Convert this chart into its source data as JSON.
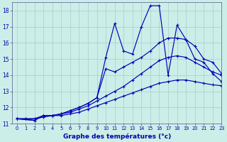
{
  "xlabel": "Graphe des températures (°c)",
  "background_color": "#cceee8",
  "grid_color": "#aacccc",
  "line_color": "#0000bb",
  "xlim": [
    -0.5,
    23
  ],
  "ylim": [
    11,
    18.5
  ],
  "xticks": [
    0,
    1,
    2,
    3,
    4,
    5,
    6,
    7,
    8,
    9,
    10,
    11,
    12,
    13,
    14,
    15,
    16,
    17,
    18,
    19,
    20,
    21,
    22,
    23
  ],
  "yticks": [
    11,
    12,
    13,
    14,
    15,
    16,
    17,
    18
  ],
  "lines": [
    {
      "x": [
        0,
        1,
        2,
        3,
        4,
        5,
        6,
        7,
        8,
        9,
        10,
        11,
        12,
        13,
        14,
        15,
        16,
        17,
        18,
        19,
        20,
        21,
        22,
        23
      ],
      "y": [
        11.3,
        11.3,
        11.3,
        11.4,
        11.5,
        11.5,
        11.6,
        11.7,
        11.9,
        12.1,
        12.3,
        12.5,
        12.7,
        12.9,
        13.1,
        13.3,
        13.5,
        13.6,
        13.7,
        13.7,
        13.6,
        13.5,
        13.4,
        13.35
      ]
    },
    {
      "x": [
        0,
        1,
        2,
        3,
        4,
        5,
        6,
        7,
        8,
        9,
        10,
        11,
        12,
        13,
        14,
        15,
        16,
        17,
        18,
        19,
        20,
        21,
        22,
        23
      ],
      "y": [
        11.3,
        11.3,
        11.3,
        11.5,
        11.5,
        11.6,
        11.7,
        11.9,
        12.1,
        12.4,
        12.7,
        13.0,
        13.3,
        13.7,
        14.1,
        14.5,
        14.9,
        15.1,
        15.2,
        15.1,
        14.8,
        14.5,
        14.2,
        14.0
      ]
    },
    {
      "x": [
        0,
        2,
        3,
        4,
        5,
        6,
        7,
        8,
        9,
        10,
        11,
        12,
        13,
        14,
        15,
        16,
        17,
        18,
        19,
        20,
        21,
        22,
        23
      ],
      "y": [
        11.3,
        11.2,
        11.5,
        11.5,
        11.6,
        11.8,
        12.0,
        12.25,
        12.6,
        14.4,
        14.2,
        14.5,
        14.8,
        15.1,
        15.5,
        16.0,
        16.3,
        16.3,
        16.2,
        15.8,
        15.0,
        14.8,
        14.1
      ]
    },
    {
      "x": [
        0,
        2,
        3,
        4,
        5,
        6,
        7,
        8,
        9,
        10,
        11,
        12,
        13,
        14,
        15,
        16,
        17,
        18,
        19,
        20,
        21,
        22,
        23
      ],
      "y": [
        11.3,
        11.2,
        11.5,
        11.5,
        11.6,
        11.8,
        12.0,
        12.25,
        12.6,
        15.1,
        17.2,
        15.5,
        15.3,
        17.0,
        18.3,
        18.3,
        14.0,
        17.1,
        16.2,
        15.0,
        14.8,
        14.1,
        13.6
      ]
    }
  ]
}
